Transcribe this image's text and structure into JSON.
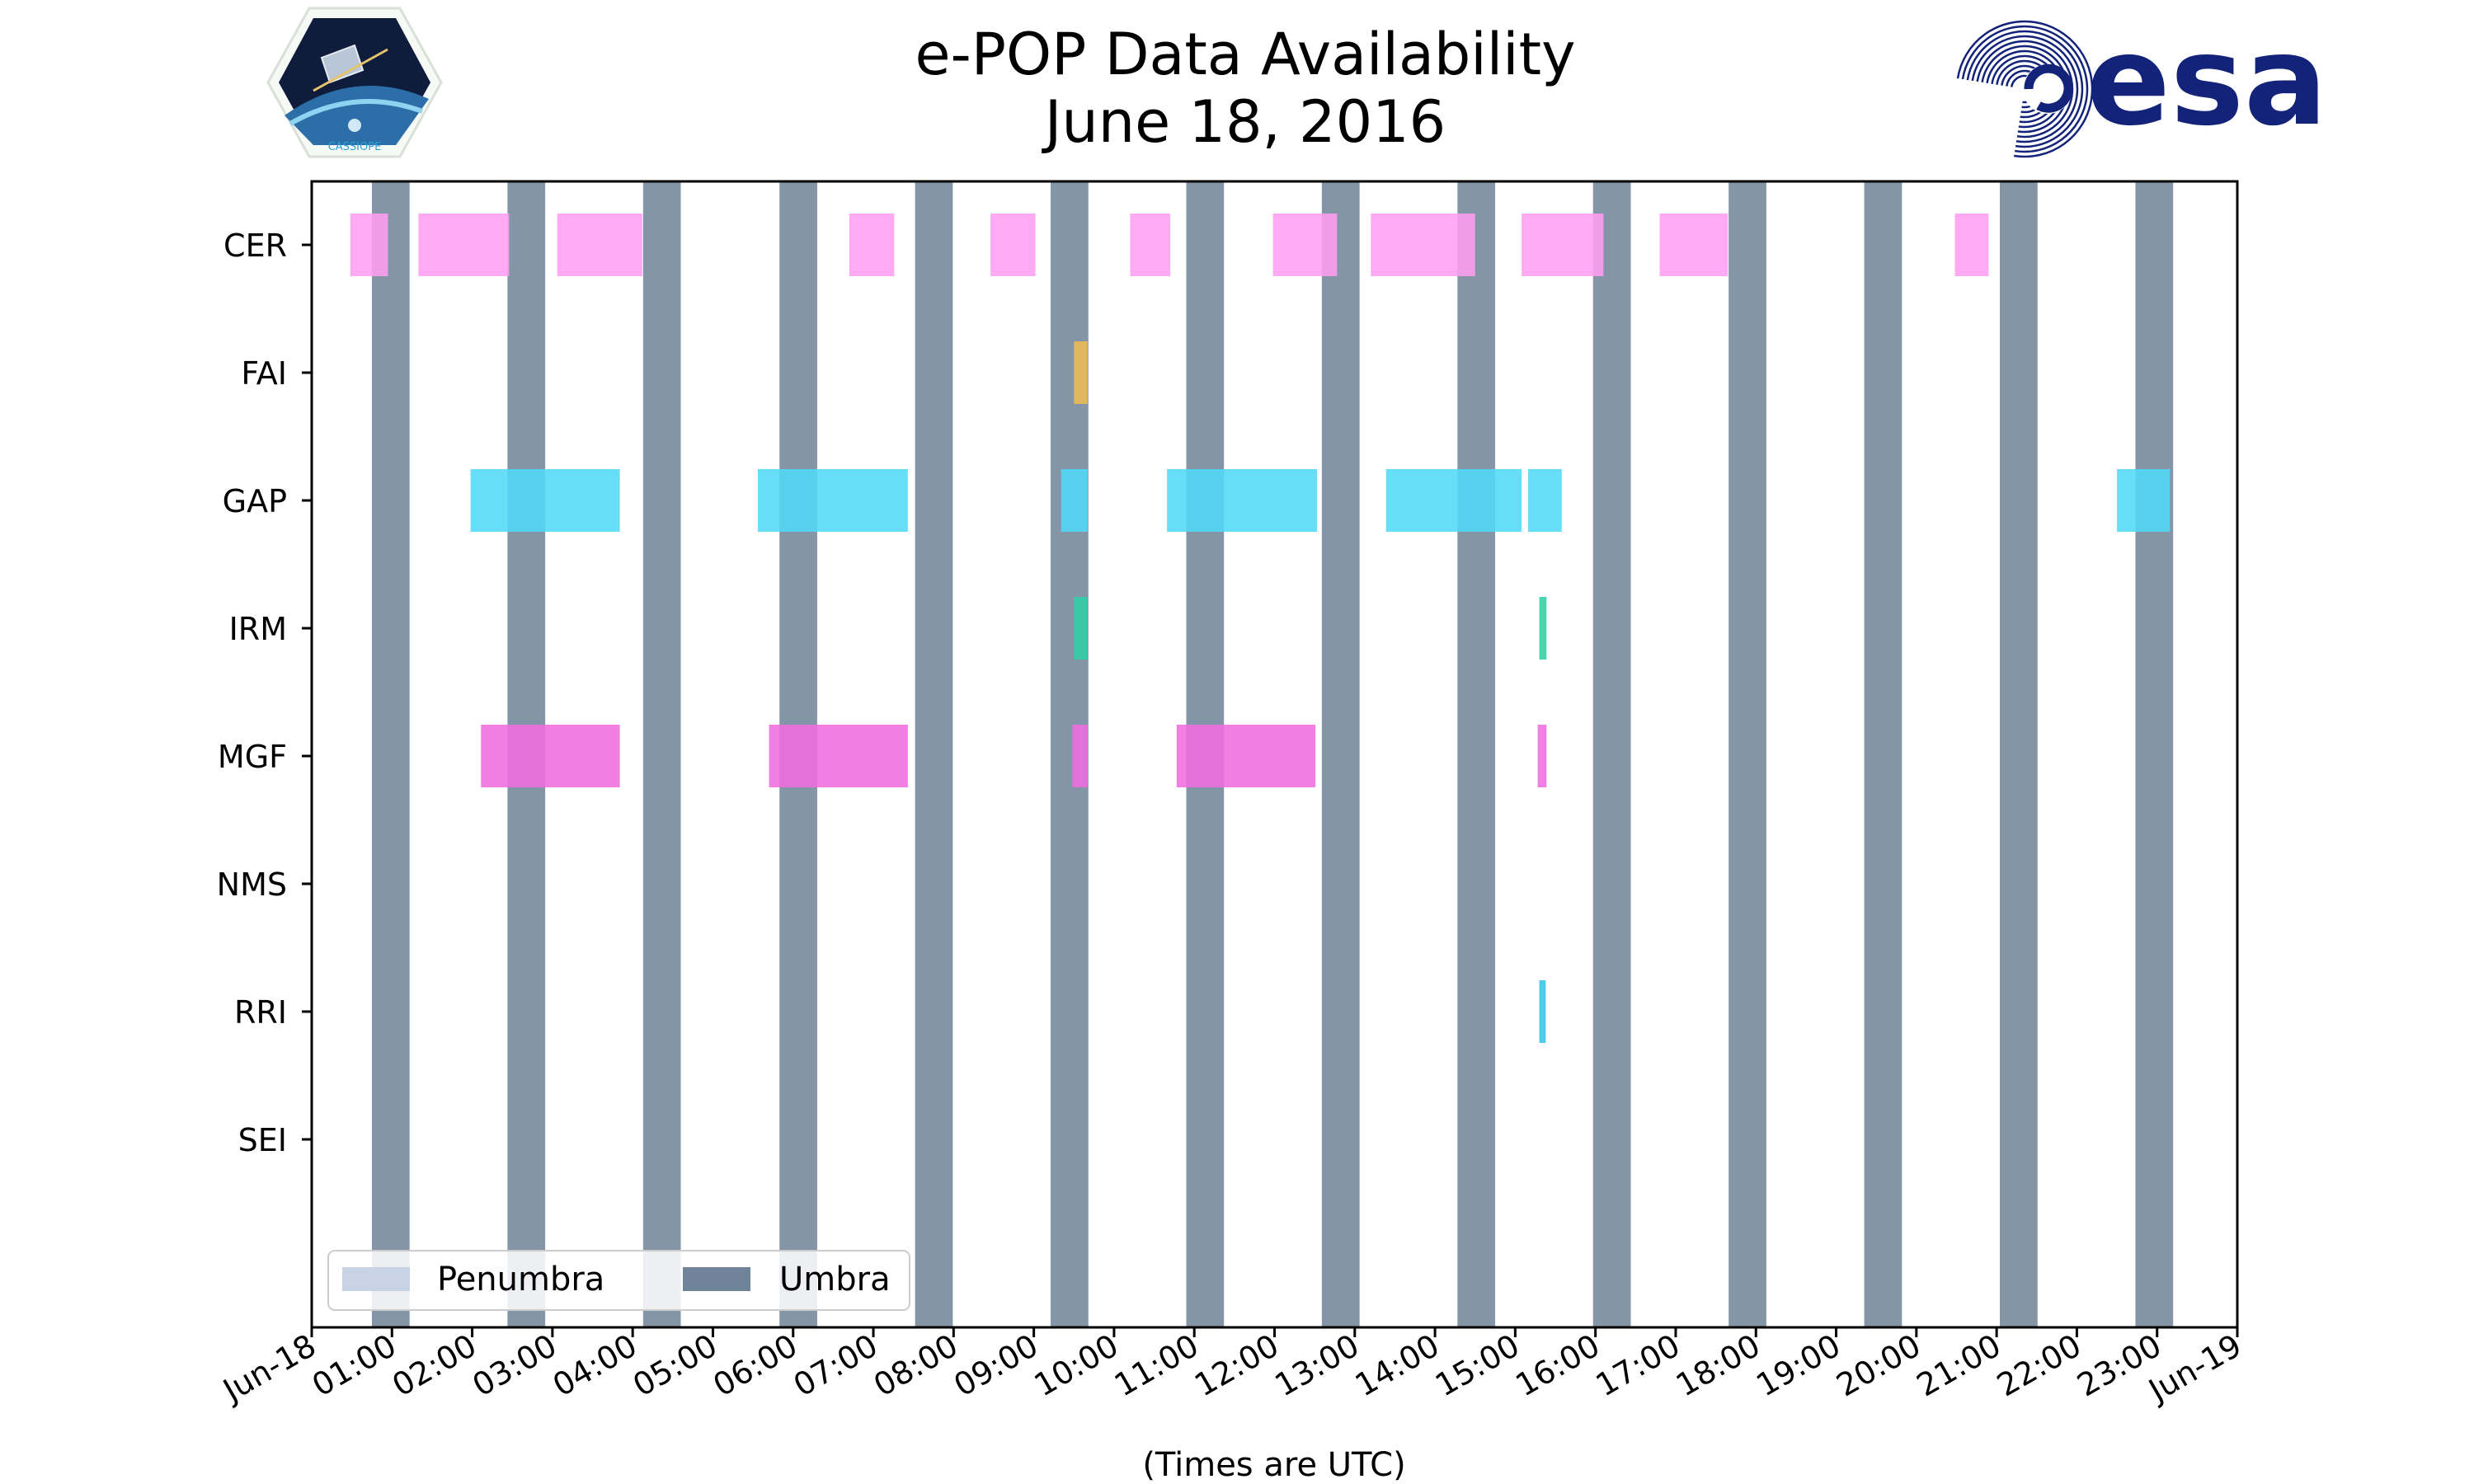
{
  "colors": {
    "penumbra": "#c8d4e6",
    "umbra": "#6f8399",
    "CER": "#ff9ef0",
    "FAI": "#eebc52",
    "GAP": "#52daf7",
    "IRM": "#2fd0a6",
    "MGF": "#ef6cde",
    "RRI": "#34c4e7",
    "esa_blue": "#13237a"
  },
  "logos": {
    "left": "CASSIOPE",
    "right": "esa"
  },
  "chart_data": {
    "type": "timeline",
    "title": "e-POP Data Availability",
    "subtitle": "June 18, 2016",
    "xlabel": "(Times are UTC)",
    "xlim_hours": [
      0,
      24
    ],
    "x_ticks": [
      "Jun-18",
      "01:00",
      "02:00",
      "03:00",
      "04:00",
      "05:00",
      "06:00",
      "07:00",
      "08:00",
      "09:00",
      "10:00",
      "11:00",
      "12:00",
      "13:00",
      "14:00",
      "15:00",
      "16:00",
      "17:00",
      "18:00",
      "19:00",
      "20:00",
      "21:00",
      "22:00",
      "23:00",
      "Jun-19"
    ],
    "instruments": [
      "CER",
      "FAI",
      "GAP",
      "IRM",
      "MGF",
      "NMS",
      "RRI",
      "SEI"
    ],
    "umbra": [
      [
        0.75,
        1.22
      ],
      [
        2.44,
        2.91
      ],
      [
        4.13,
        4.6
      ],
      [
        5.83,
        6.3
      ],
      [
        7.52,
        7.99
      ],
      [
        9.21,
        9.68
      ],
      [
        10.9,
        11.37
      ],
      [
        12.59,
        13.06
      ],
      [
        14.28,
        14.75
      ],
      [
        15.97,
        16.44
      ],
      [
        17.66,
        18.13
      ],
      [
        19.35,
        19.82
      ],
      [
        21.04,
        21.51
      ],
      [
        22.73,
        23.2
      ]
    ],
    "penumbra": [],
    "availability": [
      {
        "instrument": "CER",
        "intervals": [
          [
            0.48,
            0.95
          ],
          [
            1.33,
            2.46
          ],
          [
            3.06,
            4.12
          ],
          [
            6.7,
            7.26
          ],
          [
            8.46,
            9.02
          ],
          [
            10.2,
            10.7
          ],
          [
            11.98,
            12.78
          ],
          [
            13.2,
            14.5
          ],
          [
            15.08,
            16.1
          ],
          [
            16.8,
            17.65
          ],
          [
            20.48,
            20.9
          ]
        ]
      },
      {
        "instrument": "FAI",
        "intervals": [
          [
            9.5,
            9.67
          ]
        ]
      },
      {
        "instrument": "GAP",
        "intervals": [
          [
            1.98,
            3.84
          ],
          [
            5.56,
            7.43
          ],
          [
            9.34,
            9.67
          ],
          [
            10.66,
            12.53
          ],
          [
            13.39,
            15.08
          ],
          [
            15.16,
            15.58
          ],
          [
            22.5,
            23.16
          ]
        ]
      },
      {
        "instrument": "IRM",
        "intervals": [
          [
            9.5,
            9.67
          ],
          [
            15.3,
            15.39
          ]
        ]
      },
      {
        "instrument": "MGF",
        "intervals": [
          [
            2.11,
            3.84
          ],
          [
            5.7,
            7.43
          ],
          [
            9.48,
            9.67
          ],
          [
            10.78,
            12.51
          ],
          [
            15.28,
            15.39
          ]
        ]
      },
      {
        "instrument": "NMS",
        "intervals": []
      },
      {
        "instrument": "RRI",
        "intervals": [
          [
            15.3,
            15.38
          ]
        ]
      },
      {
        "instrument": "SEI",
        "intervals": []
      }
    ],
    "legend": {
      "position": "lower-left",
      "entries": [
        "Penumbra",
        "Umbra"
      ]
    },
    "grid": false
  }
}
